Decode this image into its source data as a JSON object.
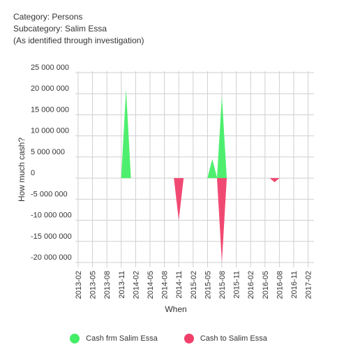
{
  "header": {
    "category": "Category: Persons",
    "subcategory": "Subcategory: Salim Essa",
    "note": "(As identified through investigation)"
  },
  "chart_data": {
    "type": "area",
    "xlabel": "When",
    "ylabel": "How much cash?",
    "ylim": [
      -20000000,
      25000000
    ],
    "y_ticks": [
      25000000,
      20000000,
      15000000,
      10000000,
      5000000,
      0,
      -5000000,
      -10000000,
      -15000000,
      -20000000
    ],
    "y_tick_labels": [
      "25 000 000",
      "20 000 000",
      "15 000 000",
      "10 000 000",
      "5 000 000",
      "0",
      "-5 000 000",
      "-10 000 000",
      "-15 000 000",
      "-20 000 000"
    ],
    "x_tick_labels": [
      "2013-02",
      "2013-05",
      "2013-08",
      "2013-11",
      "2014-02",
      "2014-05",
      "2014-08",
      "2014-11",
      "2015-02",
      "2015-05",
      "2015-08",
      "2015-11",
      "2016-02",
      "2016-05",
      "2016-08",
      "2016-11",
      "2017-02"
    ],
    "grid": true,
    "legend_position": "bottom",
    "series": [
      {
        "name": "Cash frm Salim Essa",
        "color": "#44ee66",
        "points": [
          {
            "x": "2013-12",
            "y": 21000000
          },
          {
            "x": "2015-06",
            "y": 4500000
          },
          {
            "x": "2015-08",
            "y": 19500000
          }
        ]
      },
      {
        "name": "Cash to Salim Essa",
        "color": "#f0406a",
        "points": [
          {
            "x": "2014-11",
            "y": -10000000
          },
          {
            "x": "2015-08",
            "y": -20000000
          },
          {
            "x": "2016-07",
            "y": -1000000
          }
        ]
      }
    ]
  }
}
